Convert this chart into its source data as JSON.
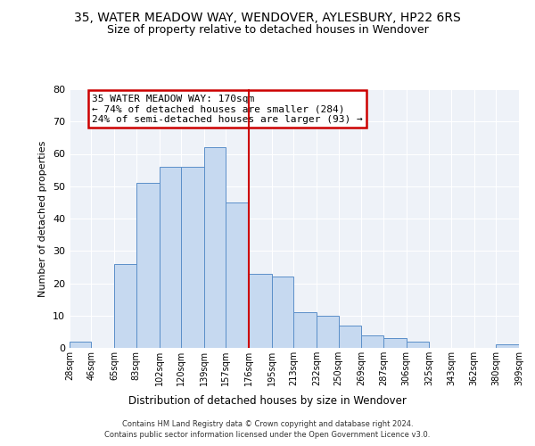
{
  "title": "35, WATER MEADOW WAY, WENDOVER, AYLESBURY, HP22 6RS",
  "subtitle": "Size of property relative to detached houses in Wendover",
  "xlabel": "Distribution of detached houses by size in Wendover",
  "ylabel": "Number of detached properties",
  "bar_values": [
    2,
    0,
    26,
    51,
    56,
    56,
    62,
    45,
    23,
    22,
    11,
    10,
    7,
    4,
    3,
    2,
    0,
    0,
    0,
    1
  ],
  "bin_labels": [
    "28sqm",
    "46sqm",
    "65sqm",
    "83sqm",
    "102sqm",
    "120sqm",
    "139sqm",
    "157sqm",
    "176sqm",
    "195sqm",
    "213sqm",
    "232sqm",
    "250sqm",
    "269sqm",
    "287sqm",
    "306sqm",
    "325sqm",
    "343sqm",
    "362sqm",
    "380sqm",
    "399sqm"
  ],
  "bin_edges": [
    28,
    46,
    65,
    83,
    102,
    120,
    139,
    157,
    176,
    195,
    213,
    232,
    250,
    269,
    287,
    306,
    325,
    343,
    362,
    380,
    399
  ],
  "bar_color": "#c6d9f0",
  "bar_edge_color": "#5b8fc9",
  "vline_x": 176,
  "vline_color": "#cc0000",
  "ylim": [
    0,
    80
  ],
  "yticks": [
    0,
    10,
    20,
    30,
    40,
    50,
    60,
    70,
    80
  ],
  "annotation_title": "35 WATER MEADOW WAY: 170sqm",
  "annotation_line1": "← 74% of detached houses are smaller (284)",
  "annotation_line2": "24% of semi-detached houses are larger (93) →",
  "annotation_box_color": "#cc0000",
  "footer_line1": "Contains HM Land Registry data © Crown copyright and database right 2024.",
  "footer_line2": "Contains public sector information licensed under the Open Government Licence v3.0.",
  "background_color": "#eef2f8",
  "title_fontsize": 10,
  "subtitle_fontsize": 9
}
